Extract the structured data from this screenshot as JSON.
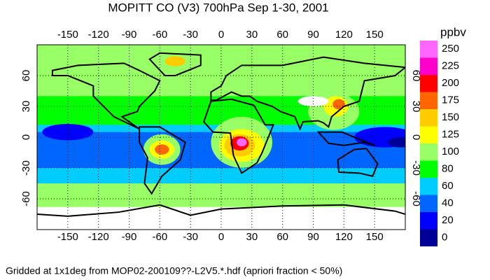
{
  "title": "MOPITT CO (V3) 700hPa Sep 1-30, 2001",
  "footer": "Gridded at 1x1deg from MOP02-200109??-L2V5.*.hdf (apriori fraction < 50%)",
  "map": {
    "xlim": [
      -180,
      180
    ],
    "ylim": [
      -90,
      90
    ],
    "xticks": [
      -150,
      -120,
      -90,
      -60,
      -30,
      0,
      30,
      60,
      90,
      120,
      150
    ],
    "yticks": [
      -60,
      -30,
      0,
      30,
      60
    ]
  },
  "colorbar": {
    "unit": "ppbv",
    "labels": [
      0,
      20,
      40,
      60,
      80,
      100,
      125,
      150,
      175,
      200,
      225,
      250
    ],
    "colors": [
      "#000099",
      "#0000ff",
      "#0066ff",
      "#00ccff",
      "#00ff00",
      "#99ff66",
      "#ffff00",
      "#ffcc00",
      "#ff6600",
      "#ff0000",
      "#ff00cc",
      "#ff66ff"
    ]
  }
}
